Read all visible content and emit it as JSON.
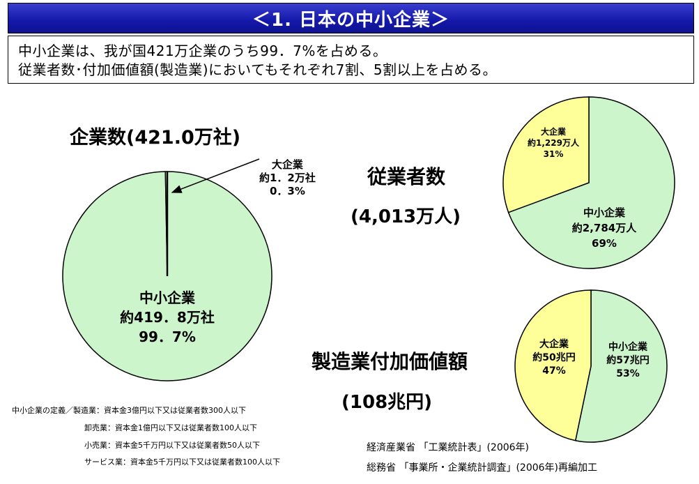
{
  "header": {
    "title": "＜1. 日本の中小企業＞"
  },
  "summary": {
    "line1": "中小企業は、我が国421万企業のうち99．7%を占める。",
    "line2": "従業者数･付加価値額(製造業)においてもそれぞれ7割、5割以上を占める。"
  },
  "colors": {
    "sme": "#ccf5cc",
    "large": "#ffff99",
    "title_bg": "#1a1eb0"
  },
  "chart_data": [
    {
      "type": "pie",
      "title": "企業数(421.0万社)",
      "slices": [
        {
          "label": "中小企業",
          "value_text": "約419．8万社",
          "percent_text": "99．7%",
          "value": 419.8
        },
        {
          "label": "大企業",
          "value_text": "約1．2万社",
          "percent_text": "0．3%",
          "value": 1.2
        }
      ]
    },
    {
      "type": "pie",
      "title": "従業者数",
      "subtitle": "(4,013万人)",
      "slices": [
        {
          "label": "中小企業",
          "value_text": "約2,784万人",
          "percent_text": "69%",
          "value": 2784
        },
        {
          "label": "大企業",
          "value_text": "約1,229万人",
          "percent_text": "31%",
          "value": 1229
        }
      ]
    },
    {
      "type": "pie",
      "title": "製造業付加価値額",
      "subtitle": "(108兆円)",
      "slices": [
        {
          "label": "中小企業",
          "value_text": "約57兆円",
          "percent_text": "53%",
          "value": 57
        },
        {
          "label": "大企業",
          "value_text": "約50兆円",
          "percent_text": "47%",
          "value": 50
        }
      ]
    }
  ],
  "definitions": {
    "heading": "中小企業の定義／",
    "rows": [
      {
        "sector": "製造業",
        "text": "：資本金3億円以下又は従業者数300人以下"
      },
      {
        "sector": "卸売業",
        "text": "：資本金1億円以下又は従業者数100人以下"
      },
      {
        "sector": "小売業",
        "text": "：資本金5千万円以下又は従業者数50人以下"
      },
      {
        "sector": "サービス業",
        "text": "：資本金5千万円以下又は従業者数100人以下"
      }
    ]
  },
  "sources": {
    "line1": "経済産業省 「工業統計表」(2006年)",
    "line2": "総務省 「事業所・企業統計調査」(2006年)再編加工"
  }
}
